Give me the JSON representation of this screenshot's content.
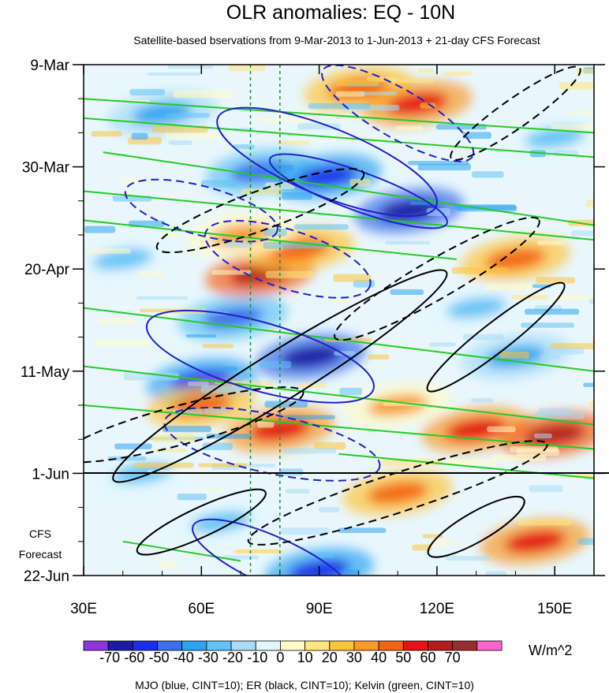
{
  "chart_data": {
    "type": "heatmap",
    "title": "OLR anomalies: EQ - 10N",
    "subtitle": "Satellite-based bservations from 9-Mar-2013 to 1-Jun-2013 + 21-day CFS Forecast",
    "footer": "MJO (blue, CINT=10); ER (black, CINT=10); Kelvin (green, CINT=10)",
    "forecast_label_line1": "CFS",
    "forecast_label_line2": "Forecast",
    "units": "W/m^2",
    "x_axis": {
      "range": [
        30,
        160
      ],
      "ticks": [
        {
          "value": 30,
          "label": "30E"
        },
        {
          "value": 60,
          "label": "60E"
        },
        {
          "value": 90,
          "label": "90E"
        },
        {
          "value": 120,
          "label": "120E"
        },
        {
          "value": 150,
          "label": "150E"
        }
      ]
    },
    "y_axis": {
      "range_days": [
        0,
        105
      ],
      "ticks": [
        {
          "value": 0,
          "label": "9-Mar"
        },
        {
          "value": 21,
          "label": "30-Mar"
        },
        {
          "value": 42,
          "label": "20-Apr"
        },
        {
          "value": 63,
          "label": "11-May"
        },
        {
          "value": 84,
          "label": "1-Jun"
        },
        {
          "value": 105,
          "label": "22-Jun"
        }
      ],
      "forecast_start": 84
    },
    "reference_lines_lon": [
      72.5,
      80
    ],
    "colorbar": {
      "labels": [
        "-70",
        "-60",
        "-50",
        "-40",
        "-30",
        "-20",
        "-10",
        "0",
        "10",
        "20",
        "30",
        "40",
        "50",
        "60",
        "70"
      ],
      "colors": [
        "#8c35d9",
        "#1d1ba0",
        "#1e2ee6",
        "#3d6fe8",
        "#2ea4ef",
        "#63c3f5",
        "#a8dcf8",
        "#e2f6fd",
        "#fffbc6",
        "#ffe680",
        "#fdc43b",
        "#f89a2a",
        "#f36418",
        "#e21418",
        "#b31d1d",
        "#963030",
        "#ff66cc"
      ]
    },
    "anomaly_blobs": [
      {
        "lon": 50,
        "day": 10,
        "value": -40
      },
      {
        "lon": 75,
        "day": 22,
        "value": -50
      },
      {
        "lon": 92,
        "day": 23,
        "value": -60
      },
      {
        "lon": 113,
        "day": 30,
        "value": -70
      },
      {
        "lon": 68,
        "day": 52,
        "value": -50
      },
      {
        "lon": 88,
        "day": 60,
        "value": -70
      },
      {
        "lon": 60,
        "day": 65,
        "value": -60
      },
      {
        "lon": 140,
        "day": 60,
        "value": -40
      },
      {
        "lon": 45,
        "day": 84,
        "value": -30
      },
      {
        "lon": 65,
        "day": 94,
        "value": -30
      },
      {
        "lon": 90,
        "day": 104,
        "value": -60
      },
      {
        "lon": 40,
        "day": 40,
        "value": -30
      },
      {
        "lon": 130,
        "day": 50,
        "value": -30
      },
      {
        "lon": 150,
        "day": 15,
        "value": -30
      },
      {
        "lon": 100,
        "day": 5,
        "value": 30
      },
      {
        "lon": 115,
        "day": 8,
        "value": 40
      },
      {
        "lon": 75,
        "day": 43,
        "value": 50
      },
      {
        "lon": 85,
        "day": 38,
        "value": 30
      },
      {
        "lon": 140,
        "day": 40,
        "value": 30
      },
      {
        "lon": 60,
        "day": 70,
        "value": 30
      },
      {
        "lon": 80,
        "day": 75,
        "value": 40
      },
      {
        "lon": 130,
        "day": 75,
        "value": 40
      },
      {
        "lon": 150,
        "day": 76,
        "value": 50
      },
      {
        "lon": 110,
        "day": 88,
        "value": 30
      },
      {
        "lon": 145,
        "day": 98,
        "value": 40
      },
      {
        "lon": 70,
        "day": 35,
        "value": 20
      },
      {
        "lon": 110,
        "day": 70,
        "value": 20
      }
    ],
    "mjo_contours": [
      {
        "cx_lon": 92,
        "cy_day": 20,
        "rx_lon": 30,
        "ry_day": 7,
        "angle_deg": 22,
        "dashed": false
      },
      {
        "cx_lon": 100,
        "cy_day": 26,
        "rx_lon": 24,
        "ry_day": 4,
        "angle_deg": 20,
        "dashed": false
      },
      {
        "cx_lon": 75,
        "cy_day": 60,
        "rx_lon": 30,
        "ry_day": 7,
        "angle_deg": 16,
        "dashed": false
      },
      {
        "cx_lon": 78,
        "cy_day": 102,
        "rx_lon": 22,
        "ry_day": 5,
        "angle_deg": 24,
        "dashed": false
      },
      {
        "cx_lon": 82,
        "cy_day": 40,
        "rx_lon": 22,
        "ry_day": 6,
        "angle_deg": 18,
        "dashed": true
      },
      {
        "cx_lon": 78,
        "cy_day": 78,
        "rx_lon": 28,
        "ry_day": 6,
        "angle_deg": 12,
        "dashed": true
      },
      {
        "cx_lon": 110,
        "cy_day": 10,
        "rx_lon": 22,
        "ry_day": 5,
        "angle_deg": 30,
        "dashed": true
      },
      {
        "cx_lon": 60,
        "cy_day": 30,
        "rx_lon": 20,
        "ry_day": 5,
        "angle_deg": 15,
        "dashed": true
      }
    ],
    "er_contours": [
      {
        "cx_lon": 80,
        "cy_day": 64,
        "rx_lon": 50,
        "ry_day": 5,
        "angle_deg": -32,
        "dashed": false
      },
      {
        "cx_lon": 135,
        "cy_day": 56,
        "rx_lon": 22,
        "ry_day": 3,
        "angle_deg": -38,
        "dashed": false
      },
      {
        "cx_lon": 130,
        "cy_day": 95,
        "rx_lon": 14,
        "ry_day": 3,
        "angle_deg": -30,
        "dashed": false
      },
      {
        "cx_lon": 60,
        "cy_day": 94,
        "rx_lon": 18,
        "ry_day": 3,
        "angle_deg": -25,
        "dashed": false
      },
      {
        "cx_lon": 120,
        "cy_day": 44,
        "rx_lon": 30,
        "ry_day": 4,
        "angle_deg": -30,
        "dashed": true
      },
      {
        "cx_lon": 75,
        "cy_day": 30,
        "rx_lon": 28,
        "ry_day": 4,
        "angle_deg": -20,
        "dashed": true
      },
      {
        "cx_lon": 110,
        "cy_day": 88,
        "rx_lon": 40,
        "ry_day": 4,
        "angle_deg": -18,
        "dashed": true
      },
      {
        "cx_lon": 140,
        "cy_day": 10,
        "rx_lon": 20,
        "ry_day": 3,
        "angle_deg": -35,
        "dashed": true
      },
      {
        "cx_lon": 55,
        "cy_day": 74,
        "rx_lon": 32,
        "ry_day": 4,
        "angle_deg": -15,
        "dashed": true
      }
    ],
    "kelvin_lines": [
      {
        "lon_start": 30,
        "day_start": 7,
        "lon_end": 160,
        "day_end": 14
      },
      {
        "lon_start": 30,
        "day_start": 11,
        "lon_end": 160,
        "day_end": 19
      },
      {
        "lon_start": 35,
        "day_start": 18,
        "lon_end": 160,
        "day_end": 33
      },
      {
        "lon_start": 30,
        "day_start": 26,
        "lon_end": 160,
        "day_end": 36
      },
      {
        "lon_start": 30,
        "day_start": 32,
        "lon_end": 125,
        "day_end": 40
      },
      {
        "lon_start": 30,
        "day_start": 50,
        "lon_end": 160,
        "day_end": 63
      },
      {
        "lon_start": 30,
        "day_start": 62,
        "lon_end": 160,
        "day_end": 74
      },
      {
        "lon_start": 30,
        "day_start": 70,
        "lon_end": 160,
        "day_end": 79
      },
      {
        "lon_start": 95,
        "day_start": 80,
        "lon_end": 160,
        "day_end": 85
      },
      {
        "lon_start": 40,
        "day_start": 98,
        "lon_end": 70,
        "day_end": 102
      }
    ]
  }
}
